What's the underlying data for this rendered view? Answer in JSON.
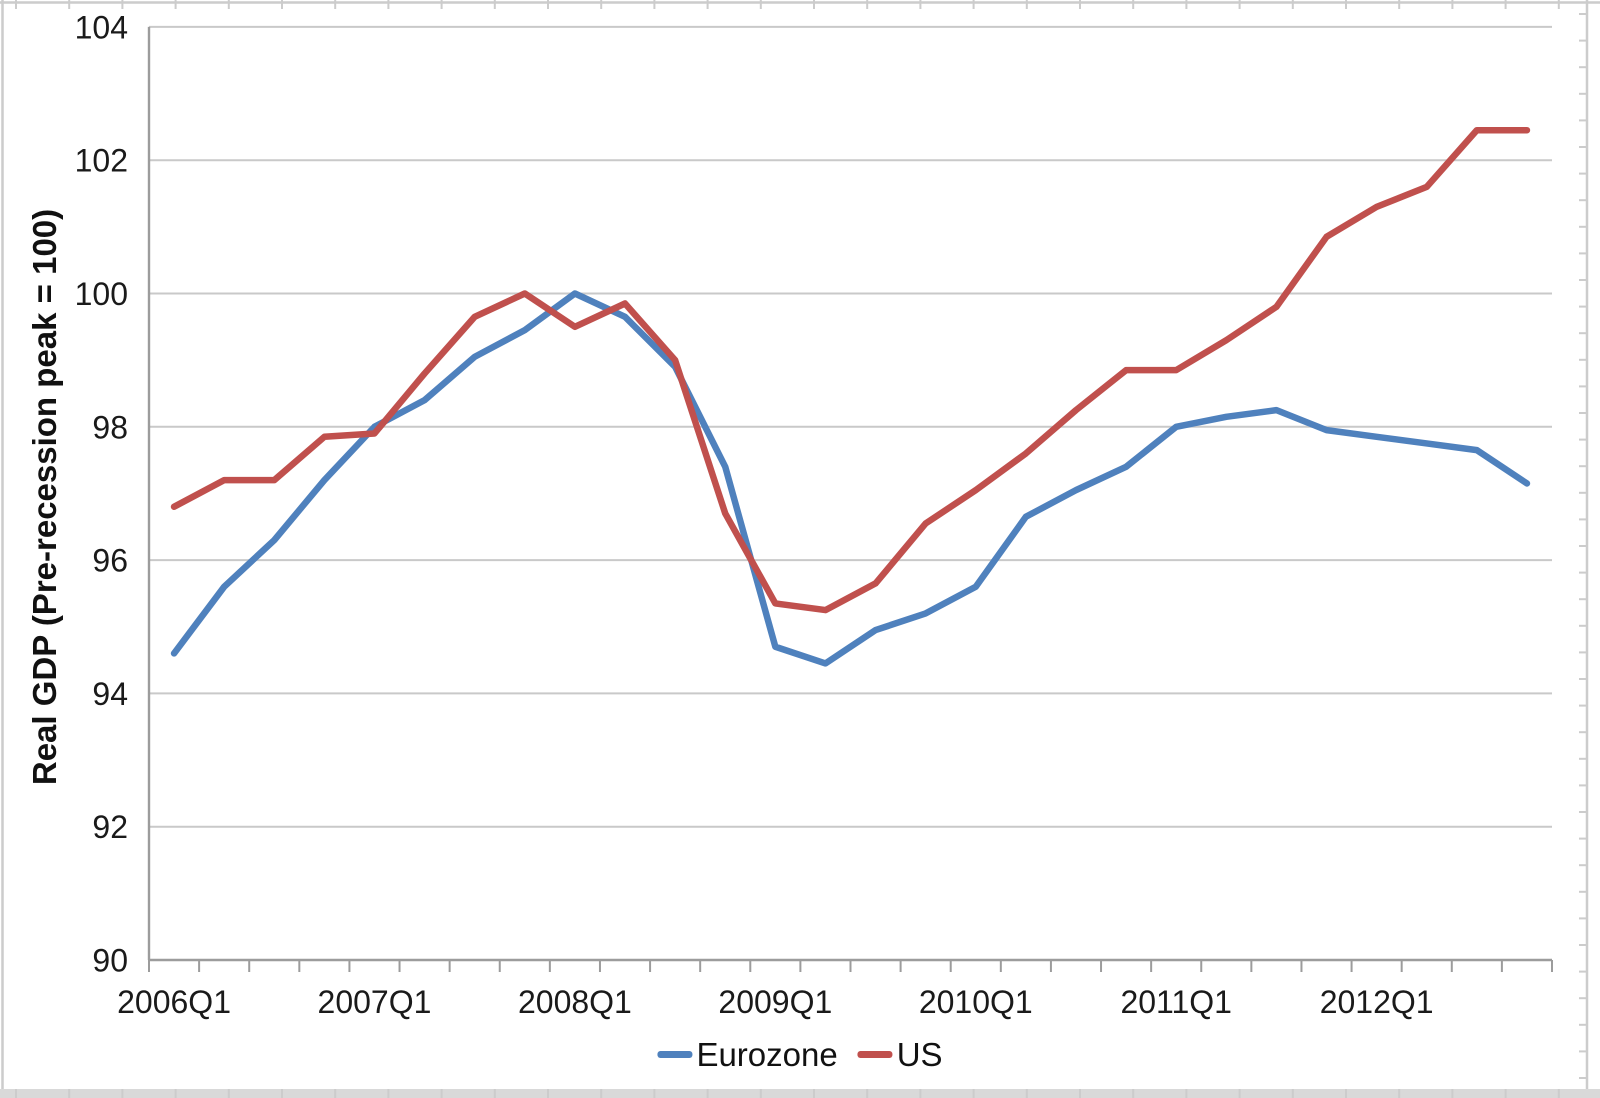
{
  "chart_data": {
    "type": "line",
    "title": "",
    "xlabel": "",
    "ylabel": "Real GDP (Pre-recession peak = 100)",
    "ylim": [
      90,
      104
    ],
    "yticks": [
      90,
      92,
      94,
      96,
      98,
      100,
      102,
      104
    ],
    "grid": "horizontal",
    "legend_position": "bottom-center",
    "x_labeled_every": 4,
    "categories": [
      "2006Q1",
      "2006Q2",
      "2006Q3",
      "2006Q4",
      "2007Q1",
      "2007Q2",
      "2007Q3",
      "2007Q4",
      "2008Q1",
      "2008Q2",
      "2008Q3",
      "2008Q4",
      "2009Q1",
      "2009Q2",
      "2009Q3",
      "2009Q4",
      "2010Q1",
      "2010Q2",
      "2010Q3",
      "2010Q4",
      "2011Q1",
      "2011Q2",
      "2011Q3",
      "2011Q4",
      "2012Q1",
      "2012Q2",
      "2012Q3",
      "2012Q4"
    ],
    "x_tick_labels_shown": [
      "2006Q1",
      "2007Q1",
      "2008Q1",
      "2009Q1",
      "2010Q1",
      "2011Q1",
      "2012Q1"
    ],
    "series": [
      {
        "name": "Eurozone",
        "color": "#4f81bd",
        "values": [
          94.6,
          95.6,
          96.3,
          97.2,
          98.0,
          98.4,
          99.05,
          99.45,
          100.0,
          99.65,
          98.9,
          97.4,
          94.7,
          94.45,
          94.95,
          95.2,
          95.6,
          96.65,
          97.05,
          97.4,
          98.0,
          98.15,
          98.25,
          97.95,
          97.85,
          97.75,
          97.65,
          97.15
        ]
      },
      {
        "name": "US",
        "color": "#c0504d",
        "values": [
          96.8,
          97.2,
          97.2,
          97.85,
          97.9,
          98.8,
          99.65,
          100.0,
          99.5,
          99.85,
          99.0,
          96.7,
          95.35,
          95.25,
          95.65,
          96.55,
          97.05,
          97.6,
          98.25,
          98.85,
          98.85,
          99.3,
          99.8,
          100.85,
          101.3,
          101.6,
          102.45,
          102.45
        ]
      }
    ],
    "colors": {
      "gridline": "#c9c9c9",
      "axis": "#9c9c9c",
      "frame": "#cccccc",
      "frame_strip": "#d9d9d9",
      "text": "#1a1a1a"
    }
  }
}
